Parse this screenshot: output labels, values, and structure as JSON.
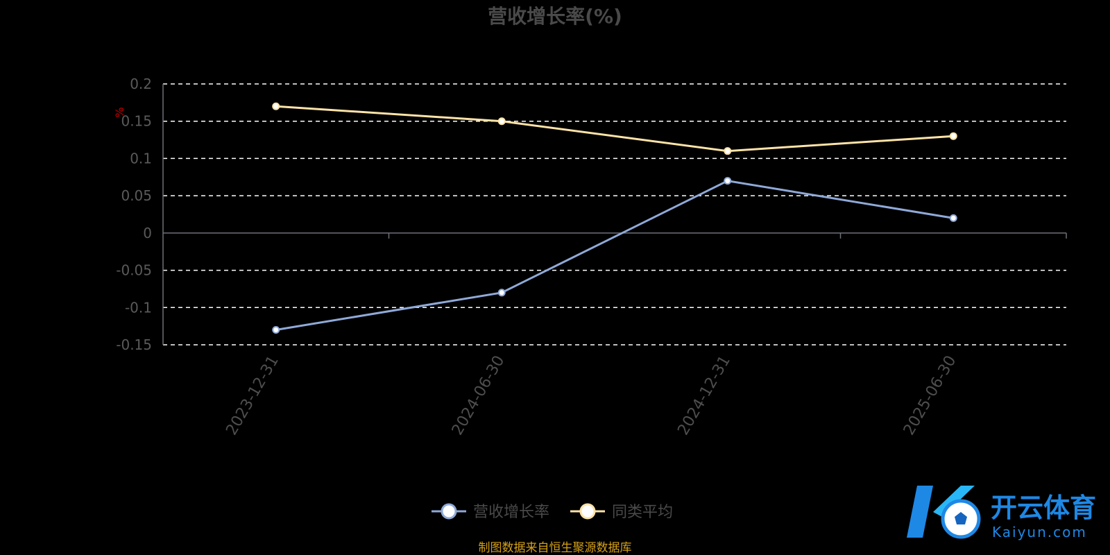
{
  "chart_data": {
    "type": "line",
    "title": "营收增长率(%)",
    "unit_label": "%",
    "categories": [
      "2023-12-31",
      "2024-06-30",
      "2024-12-31",
      "2025-06-30"
    ],
    "series": [
      {
        "name": "营收增长率",
        "values": [
          -0.13,
          -0.08,
          0.07,
          0.02
        ],
        "color": "#8fa9d8"
      },
      {
        "name": "同类平均",
        "values": [
          0.17,
          0.15,
          0.11,
          0.13
        ],
        "color": "#fde3a7"
      }
    ],
    "yticks": [
      "0.2",
      "0.15",
      "0.1",
      "0.05",
      "0",
      "-0.05",
      "-0.1",
      "-0.15"
    ],
    "ylim": [
      -0.15,
      0.2
    ],
    "grid": true,
    "legend_position": "bottom"
  },
  "source_note": "制图数据来自恒生聚源数据库",
  "watermark": {
    "cn": "开云体育",
    "en": "Kaiyun.com",
    "brand_color": "#1e88e5"
  },
  "colors": {
    "background": "#000000",
    "grid": "#ffffff",
    "axis": "#6e7079"
  }
}
